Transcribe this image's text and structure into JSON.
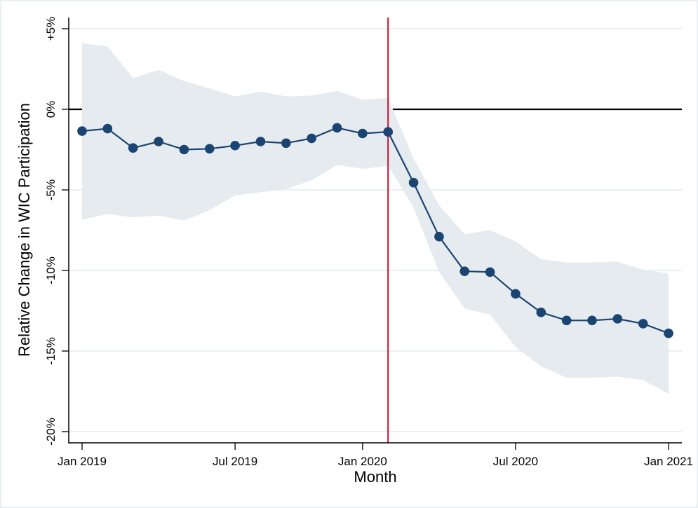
{
  "chart_data": {
    "type": "line",
    "title": "",
    "xlabel": "Month",
    "ylabel": "Relative Change in WIC Participation",
    "x": [
      0,
      1,
      2,
      3,
      4,
      5,
      6,
      7,
      8,
      9,
      10,
      11,
      12,
      13,
      14,
      15,
      16,
      17,
      18,
      19,
      20,
      21,
      22,
      23
    ],
    "x_ticks": [
      {
        "x": 0,
        "label": "Jan 2019"
      },
      {
        "x": 6,
        "label": "Jul 2019"
      },
      {
        "x": 11,
        "label": "Jan 2020"
      },
      {
        "x": 17,
        "label": "Jul 2020"
      },
      {
        "x": 23,
        "label": "Jan 2021"
      }
    ],
    "y_ticks": [
      {
        "y": 5,
        "label": "+5%"
      },
      {
        "y": 0,
        "label": "0%"
      },
      {
        "y": -5,
        "label": "-5%"
      },
      {
        "y": -10,
        "label": "-10%"
      },
      {
        "y": -15,
        "label": "-15%"
      },
      {
        "y": -20,
        "label": "-20%"
      }
    ],
    "xlim": [
      -0.5,
      23.5
    ],
    "ylim": [
      -20.7,
      5.9
    ],
    "grid": true,
    "legend": "none",
    "series": [
      {
        "name": "Estimate",
        "type": "line-markers",
        "color": "#1a4472",
        "values": [
          -1.35,
          -1.2,
          -2.4,
          -2.0,
          -2.5,
          -2.45,
          -2.25,
          -2.0,
          -2.1,
          -1.8,
          -1.15,
          -1.5,
          -1.4,
          -4.55,
          -7.9,
          -10.05,
          -10.1,
          -11.45,
          -12.6,
          -13.1,
          -13.1,
          -13.0,
          -13.3,
          -13.9
        ]
      },
      {
        "name": "Confidence interval",
        "type": "band",
        "color": "#e6ebf0",
        "upper": [
          4.1,
          3.9,
          1.95,
          2.45,
          1.75,
          1.3,
          0.8,
          1.1,
          0.8,
          0.85,
          1.15,
          0.6,
          0.7,
          -3.05,
          -5.95,
          -7.75,
          -7.5,
          -8.2,
          -9.3,
          -9.5,
          -9.5,
          -9.45,
          -9.95,
          -10.2
        ],
        "lower": [
          -6.85,
          -6.5,
          -6.7,
          -6.6,
          -6.9,
          -6.25,
          -5.35,
          -5.15,
          -4.95,
          -4.4,
          -3.45,
          -3.7,
          -3.5,
          -6.1,
          -10.1,
          -12.35,
          -12.75,
          -14.75,
          -15.95,
          -16.65,
          -16.65,
          -16.6,
          -16.8,
          -17.65
        ]
      }
    ],
    "reference_lines": [
      {
        "type": "horizontal",
        "y": 0,
        "color": "#000000"
      },
      {
        "type": "vertical",
        "x": 12,
        "color": "#c8102e"
      }
    ],
    "colors": {
      "gridline": "#eaf0f2",
      "axis": "#000000",
      "frame": "#eaf0f2"
    }
  }
}
